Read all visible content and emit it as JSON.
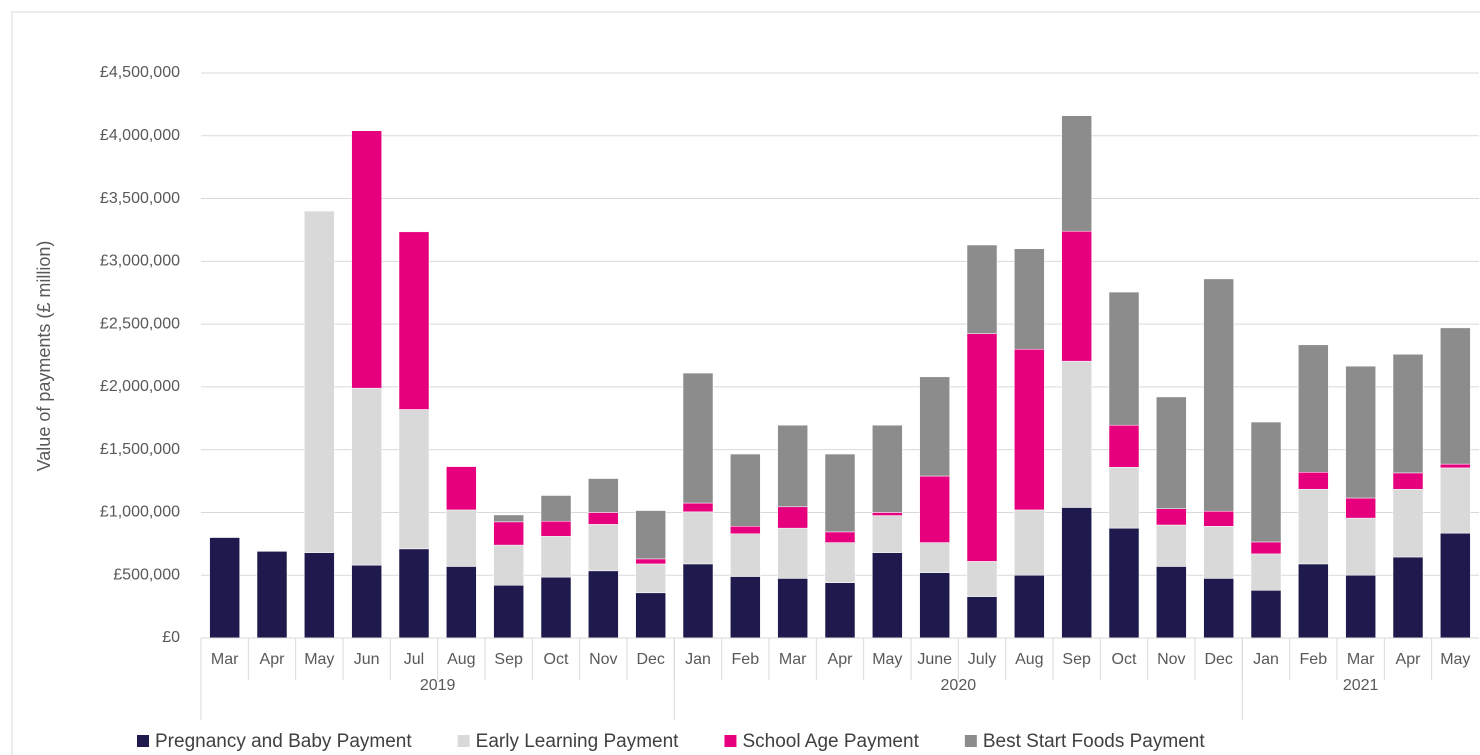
{
  "chart_data": {
    "type": "stacked_bar",
    "y_axis_label": "Value of payments (£ million)",
    "categories": [
      "Mar",
      "Apr",
      "May",
      "Jun",
      "Jul",
      "Aug",
      "Sep",
      "Oct",
      "Nov",
      "Dec",
      "Jan",
      "Feb",
      "Mar",
      "Apr",
      "May",
      "June",
      "July",
      "Aug",
      "Sep",
      "Oct",
      "Nov",
      "Dec",
      "Jan",
      "Feb",
      "Mar",
      "Apr",
      "May"
    ],
    "year_groups": [
      {
        "label": "2019",
        "count": 10
      },
      {
        "label": "2020",
        "count": 12
      },
      {
        "label": "2021",
        "count": 5
      }
    ],
    "series": [
      {
        "name": "Pregnancy and Baby Payment",
        "color": "#1f1a4d",
        "values": [
          800000,
          690000,
          680000,
          580000,
          710000,
          570000,
          420000,
          485000,
          535000,
          360000,
          590000,
          490000,
          475000,
          440000,
          680000,
          520000,
          330000,
          500000,
          1040000,
          875000,
          570000,
          475000,
          380000,
          590000,
          500000,
          645000,
          835000
        ]
      },
      {
        "name": "Early Learning Payment",
        "color": "#d9d9d9",
        "values": [
          0,
          0,
          2720000,
          1410000,
          1110000,
          450000,
          320000,
          325000,
          370000,
          230000,
          415000,
          340000,
          400000,
          320000,
          295000,
          240000,
          280000,
          520000,
          1165000,
          485000,
          330000,
          415000,
          290000,
          595000,
          455000,
          540000,
          520000
        ]
      },
      {
        "name": "School Age Payment",
        "color": "#e6007e",
        "values": [
          0,
          0,
          0,
          2050000,
          1415000,
          345000,
          185000,
          120000,
          95000,
          40000,
          70000,
          60000,
          170000,
          85000,
          25000,
          530000,
          1815000,
          1280000,
          1035000,
          335000,
          130000,
          120000,
          95000,
          135000,
          160000,
          130000,
          30000
        ]
      },
      {
        "name": "Best Start Foods Payment",
        "color": "#8c8c8c",
        "values": [
          0,
          0,
          0,
          0,
          0,
          0,
          55000,
          205000,
          270000,
          385000,
          1035000,
          575000,
          650000,
          620000,
          695000,
          790000,
          705000,
          800000,
          920000,
          1060000,
          890000,
          1850000,
          955000,
          1015000,
          1050000,
          945000,
          1085000
        ]
      }
    ],
    "ylim": [
      0,
      4500000
    ],
    "yticks": [
      {
        "value": 0,
        "label": "£0"
      },
      {
        "value": 500000,
        "label": "£500,000"
      },
      {
        "value": 1000000,
        "label": "£1,000,000"
      },
      {
        "value": 1500000,
        "label": "£1,500,000"
      },
      {
        "value": 2000000,
        "label": "£2,000,000"
      },
      {
        "value": 2500000,
        "label": "£2,500,000"
      },
      {
        "value": 3000000,
        "label": "£3,000,000"
      },
      {
        "value": 3500000,
        "label": "£3,500,000"
      },
      {
        "value": 4000000,
        "label": "£4,000,000"
      },
      {
        "value": 4500000,
        "label": "£4,500,000"
      }
    ],
    "grid": true
  }
}
